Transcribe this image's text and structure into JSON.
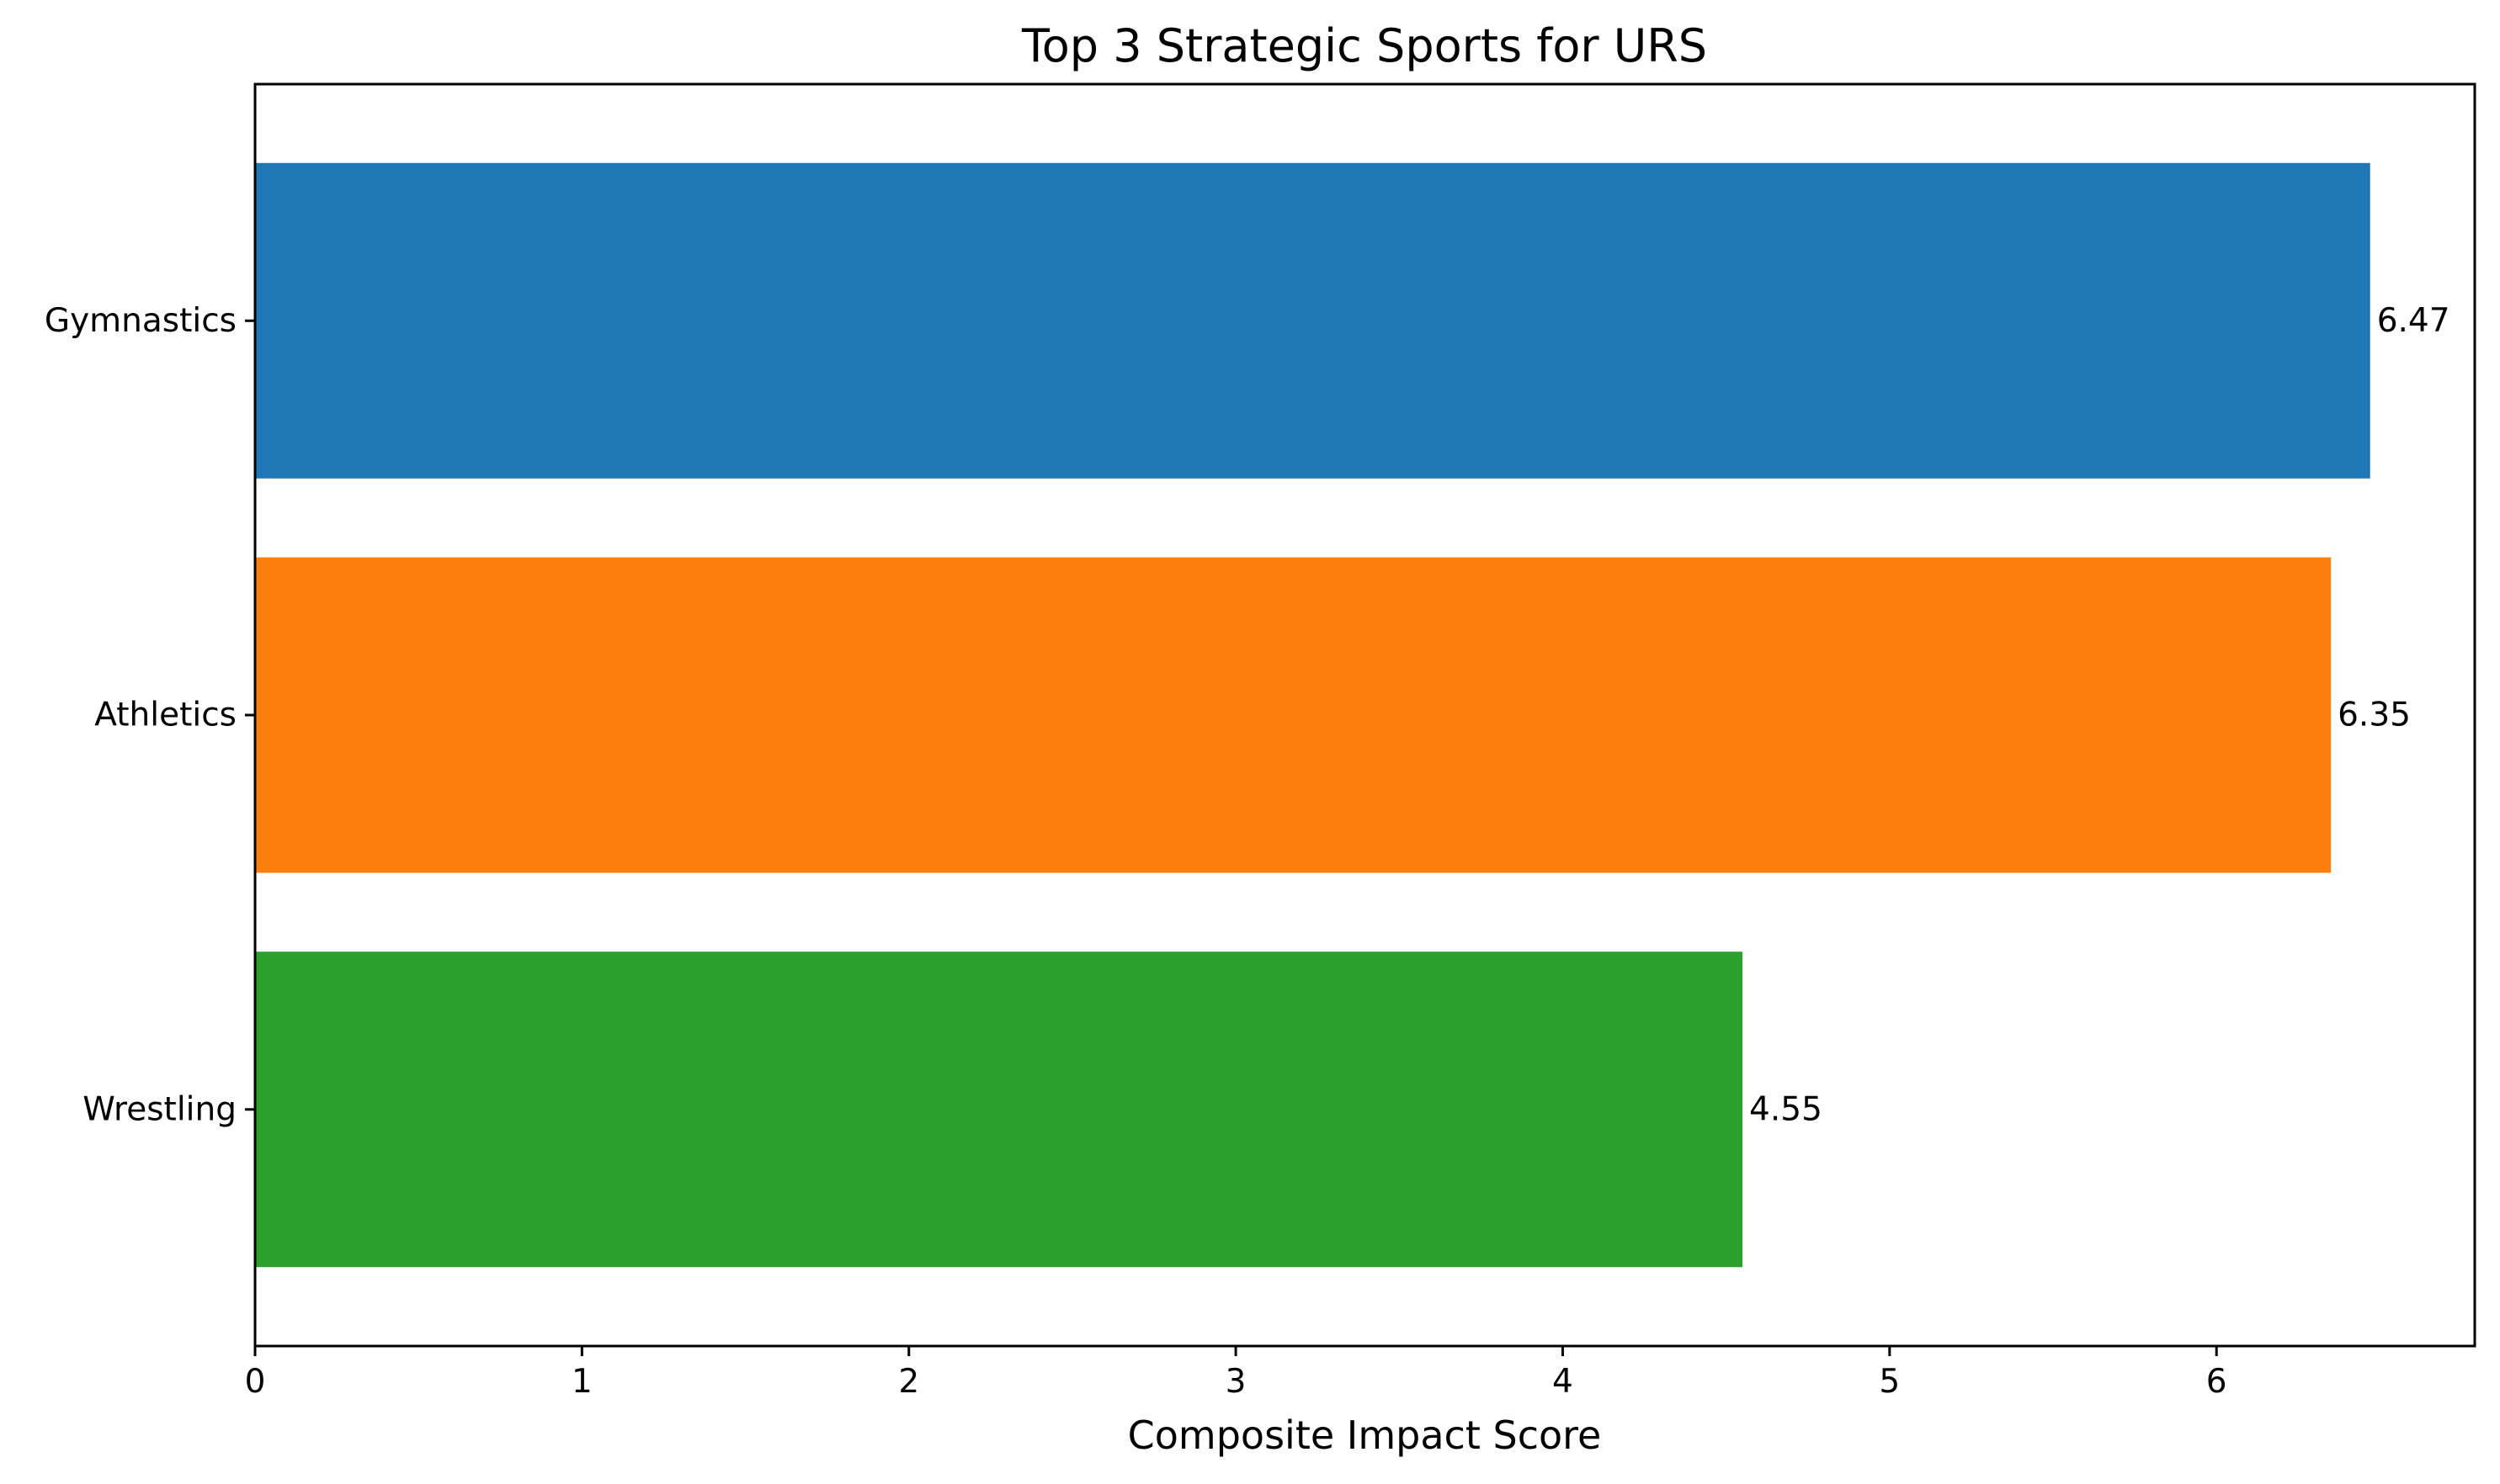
{
  "chart_data": {
    "type": "bar",
    "orientation": "horizontal",
    "title": "Top 3 Strategic Sports for URS",
    "xlabel": "Composite Impact Score",
    "ylabel": "",
    "categories": [
      "Gymnastics",
      "Athletics",
      "Wrestling"
    ],
    "values": [
      6.47,
      6.35,
      4.55
    ],
    "value_labels": [
      "6.47",
      "6.35",
      "4.55"
    ],
    "colors": [
      "#1f77b4",
      "#ff7f0e",
      "#2ca02c"
    ],
    "xlim": [
      0,
      6.79
    ],
    "xticks": [
      0,
      1,
      2,
      3,
      4,
      5,
      6
    ],
    "xtick_labels": [
      "0",
      "1",
      "2",
      "3",
      "4",
      "5",
      "6"
    ],
    "grid": false,
    "legend": "none"
  }
}
